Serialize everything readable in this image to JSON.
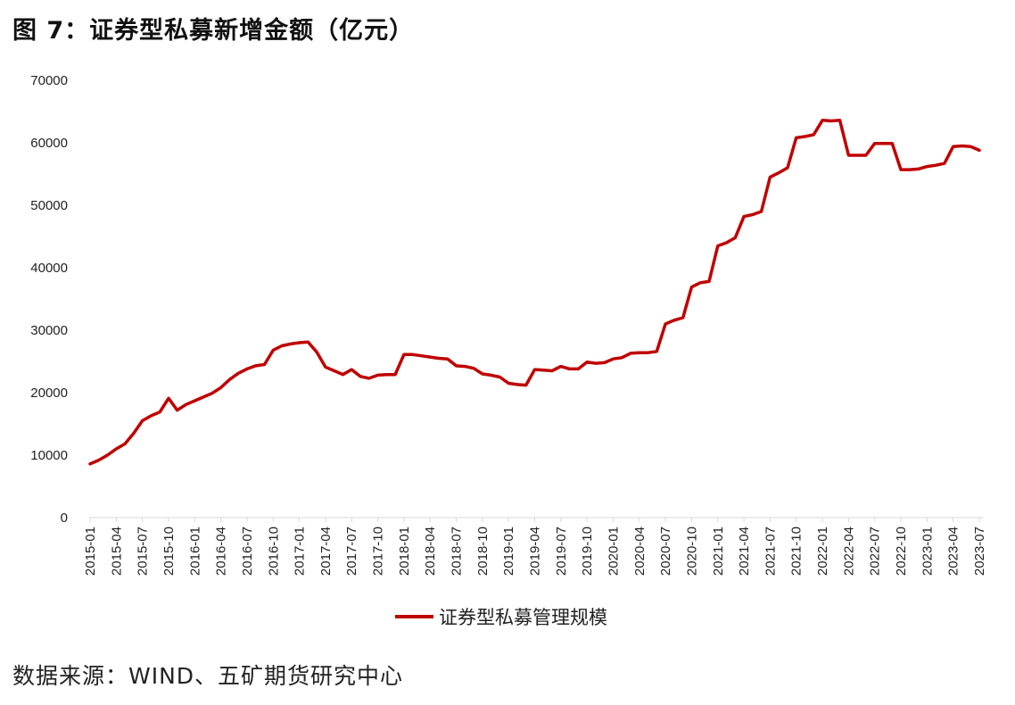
{
  "title": "图 7：证券型私募新增金额（亿元）",
  "source": "数据来源：WIND、五矿期货研究中心",
  "legend": {
    "label": "证券型私募管理规模",
    "color": "#c00000"
  },
  "chart_data": {
    "type": "line",
    "title": "图 7：证券型私募新增金额（亿元）",
    "xlabel": "",
    "ylabel": "",
    "ylim": [
      0,
      70000
    ],
    "yticks": [
      0,
      10000,
      20000,
      30000,
      40000,
      50000,
      60000,
      70000
    ],
    "grid": false,
    "legend_position": "bottom",
    "xtick_labels": [
      "2015-01",
      "2015-04",
      "2015-07",
      "2015-10",
      "2016-01",
      "2016-04",
      "2016-07",
      "2016-10",
      "2017-01",
      "2017-04",
      "2017-07",
      "2017-10",
      "2018-01",
      "2018-04",
      "2018-07",
      "2018-10",
      "2019-01",
      "2019-04",
      "2019-07",
      "2019-10",
      "2020-01",
      "2020-04",
      "2020-07",
      "2020-10",
      "2021-01",
      "2021-04",
      "2021-07",
      "2021-10",
      "2022-01",
      "2022-04",
      "2022-07",
      "2022-10",
      "2023-01",
      "2023-04",
      "2023-07"
    ],
    "x": [
      "2015-01",
      "2015-02",
      "2015-03",
      "2015-04",
      "2015-05",
      "2015-06",
      "2015-07",
      "2015-08",
      "2015-09",
      "2015-10",
      "2015-11",
      "2015-12",
      "2016-01",
      "2016-02",
      "2016-03",
      "2016-04",
      "2016-05",
      "2016-06",
      "2016-07",
      "2016-08",
      "2016-09",
      "2016-10",
      "2016-11",
      "2016-12",
      "2017-01",
      "2017-02",
      "2017-03",
      "2017-04",
      "2017-05",
      "2017-06",
      "2017-07",
      "2017-08",
      "2017-09",
      "2017-10",
      "2017-11",
      "2017-12",
      "2018-01",
      "2018-02",
      "2018-03",
      "2018-04",
      "2018-05",
      "2018-06",
      "2018-07",
      "2018-08",
      "2018-09",
      "2018-10",
      "2018-11",
      "2018-12",
      "2019-01",
      "2019-02",
      "2019-03",
      "2019-04",
      "2019-05",
      "2019-06",
      "2019-07",
      "2019-08",
      "2019-09",
      "2019-10",
      "2019-11",
      "2019-12",
      "2020-01",
      "2020-02",
      "2020-03",
      "2020-04",
      "2020-05",
      "2020-06",
      "2020-07",
      "2020-08",
      "2020-09",
      "2020-10",
      "2020-11",
      "2020-12",
      "2021-01",
      "2021-02",
      "2021-03",
      "2021-04",
      "2021-05",
      "2021-06",
      "2021-07",
      "2021-08",
      "2021-09",
      "2021-10",
      "2021-11",
      "2021-12",
      "2022-01",
      "2022-02",
      "2022-03",
      "2022-04",
      "2022-05",
      "2022-06",
      "2022-07",
      "2022-08",
      "2022-09",
      "2022-10",
      "2022-11",
      "2022-12",
      "2023-01",
      "2023-02",
      "2023-03",
      "2023-04",
      "2023-05",
      "2023-06",
      "2023-07"
    ],
    "series": [
      {
        "name": "证券型私募管理规模",
        "color": "#c00000",
        "values": [
          8600,
          9200,
          10000,
          11000,
          11800,
          13500,
          15500,
          16300,
          16900,
          19100,
          17200,
          18100,
          18700,
          19300,
          19900,
          20800,
          22100,
          23100,
          23800,
          24300,
          24500,
          26800,
          27500,
          27800,
          28000,
          28100,
          26500,
          24100,
          23500,
          22900,
          23700,
          22600,
          22300,
          22800,
          22900,
          22900,
          26100,
          26100,
          25900,
          25700,
          25500,
          25400,
          24300,
          24200,
          23900,
          23000,
          22800,
          22500,
          21500,
          21300,
          21200,
          23700,
          23600,
          23500,
          24200,
          23800,
          23800,
          24900,
          24700,
          24800,
          25400,
          25600,
          26300,
          26400,
          26400,
          26600,
          31000,
          31600,
          32000,
          36900,
          37600,
          37800,
          43500,
          44000,
          44800,
          48200,
          48500,
          49000,
          54500,
          55200,
          56000,
          60800,
          61000,
          61300,
          63600,
          63500,
          63600,
          58000,
          58000,
          58000,
          59900,
          59900,
          59900,
          55700,
          55700,
          55800,
          56200,
          56400,
          56700,
          59400,
          59500,
          59400,
          58800
        ]
      }
    ]
  }
}
